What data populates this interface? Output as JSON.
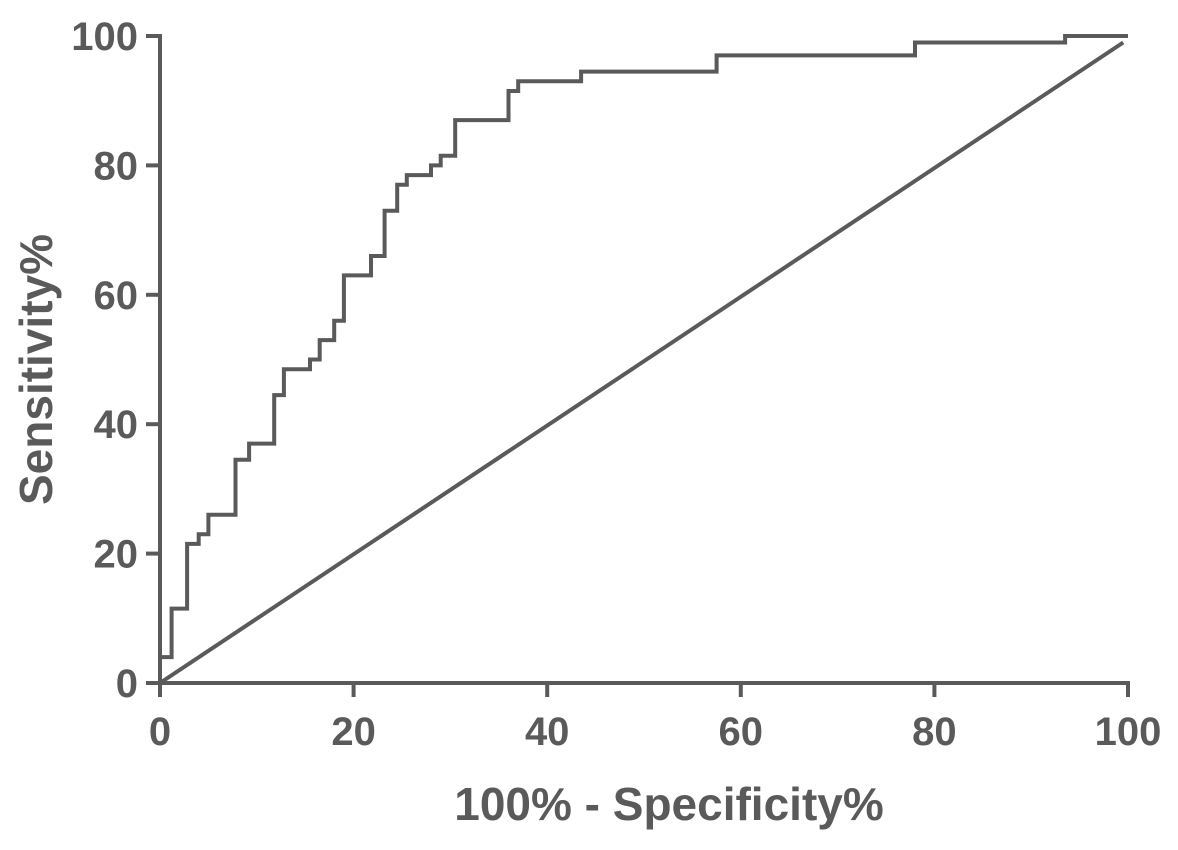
{
  "chart_data": {
    "type": "line",
    "xlabel": "100% - Specificity%",
    "ylabel": "Sensitivity%",
    "xlim": [
      0,
      100
    ],
    "ylim": [
      0,
      100
    ],
    "x_ticks": [
      "0",
      "20",
      "40",
      "60",
      "80",
      "100"
    ],
    "y_ticks": [
      "0",
      "20",
      "40",
      "60",
      "80",
      "100"
    ],
    "grid": false,
    "colors": {
      "line": "#5a5a5a",
      "axis": "#5a5a5a"
    },
    "series": [
      {
        "style": "step",
        "points": [
          [
            0,
            0
          ],
          [
            0,
            4
          ],
          [
            1.2,
            4
          ],
          [
            1.2,
            11.5
          ],
          [
            2.8,
            11.5
          ],
          [
            2.8,
            21.5
          ],
          [
            4,
            21.5
          ],
          [
            4,
            23
          ],
          [
            5,
            23
          ],
          [
            5,
            26
          ],
          [
            7.8,
            26
          ],
          [
            7.8,
            34.5
          ],
          [
            9.2,
            34.5
          ],
          [
            9.2,
            37
          ],
          [
            11.8,
            37
          ],
          [
            11.8,
            44.5
          ],
          [
            12.8,
            44.5
          ],
          [
            12.8,
            48.5
          ],
          [
            15.5,
            48.5
          ],
          [
            15.5,
            50
          ],
          [
            16.5,
            50
          ],
          [
            16.5,
            53
          ],
          [
            18,
            53
          ],
          [
            18,
            56
          ],
          [
            19,
            56
          ],
          [
            19,
            63
          ],
          [
            21.8,
            63
          ],
          [
            21.8,
            66
          ],
          [
            23.2,
            66
          ],
          [
            23.2,
            73
          ],
          [
            24.5,
            73
          ],
          [
            24.5,
            77
          ],
          [
            25.5,
            77
          ],
          [
            25.5,
            78.5
          ],
          [
            28,
            78.5
          ],
          [
            28,
            80
          ],
          [
            29,
            80
          ],
          [
            29,
            81.5
          ],
          [
            30.5,
            81.5
          ],
          [
            30.5,
            87
          ],
          [
            36,
            87
          ],
          [
            36,
            91.5
          ],
          [
            37,
            91.5
          ],
          [
            37,
            93
          ],
          [
            43.5,
            93
          ],
          [
            43.5,
            94.5
          ],
          [
            57.5,
            94.5
          ],
          [
            57.5,
            97
          ],
          [
            78,
            97
          ],
          [
            78,
            99
          ],
          [
            93.5,
            99
          ],
          [
            93.5,
            100
          ],
          [
            100,
            100
          ]
        ]
      },
      {
        "style": "reference",
        "points": [
          [
            0,
            0
          ],
          [
            99.5,
            99
          ]
        ]
      }
    ]
  }
}
